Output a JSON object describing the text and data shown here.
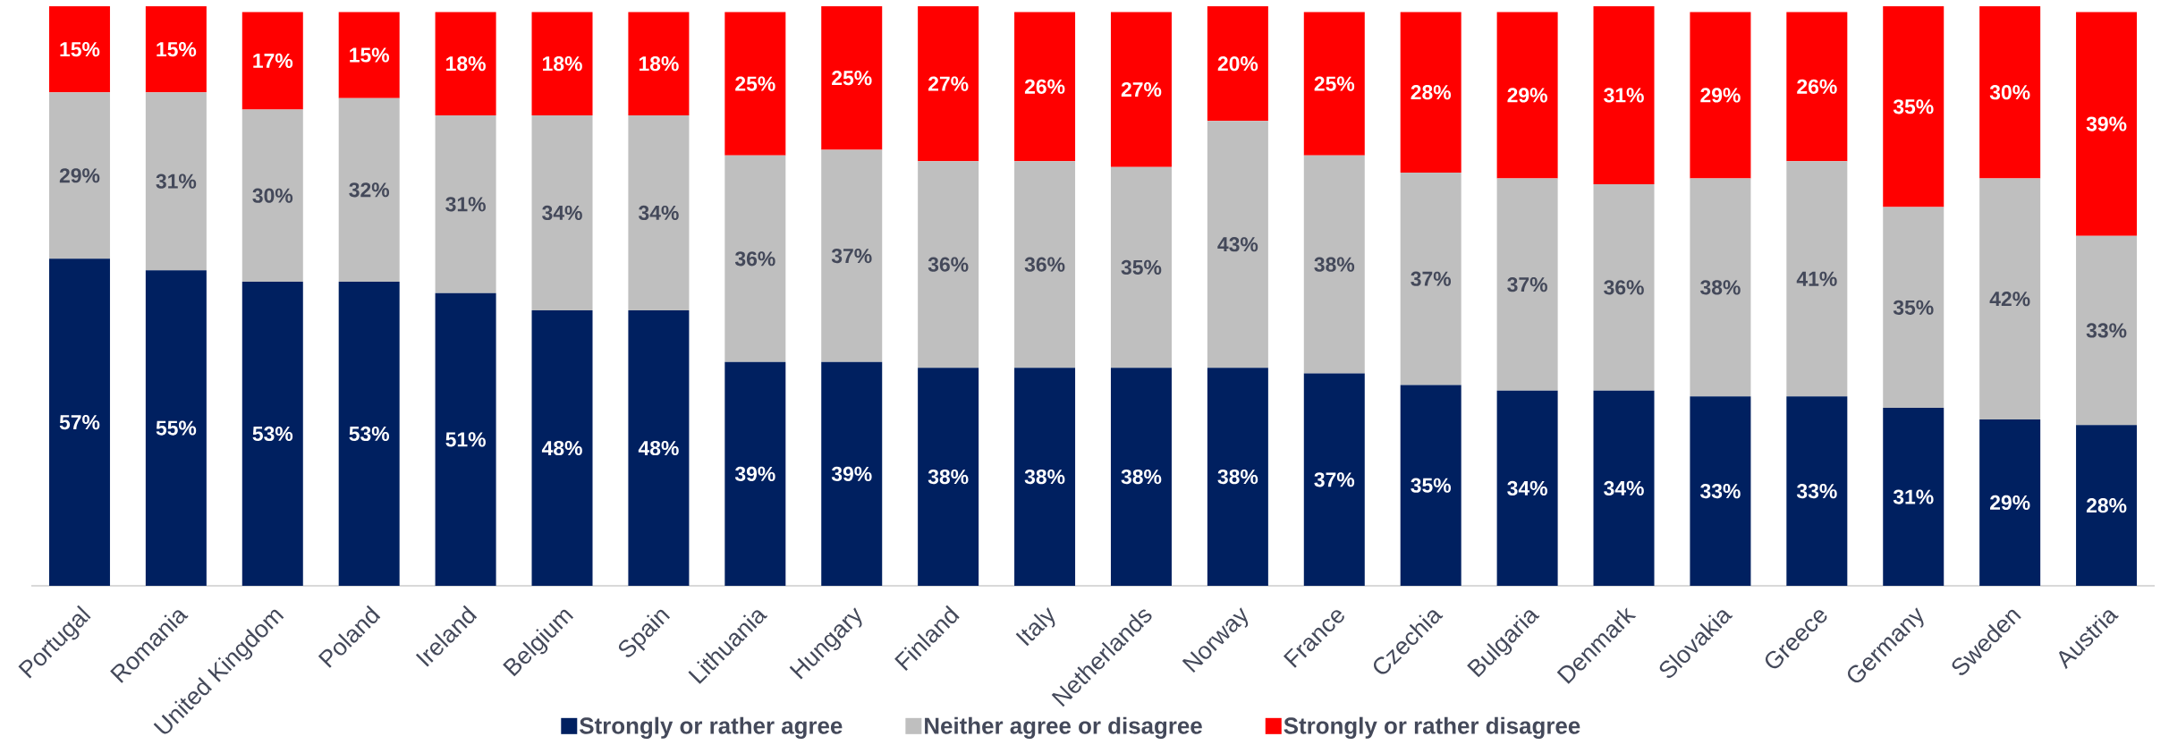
{
  "chart_data": {
    "type": "bar",
    "stacked": true,
    "legend": "bottom",
    "categories": [
      "Portugal",
      "Romania",
      "United Kingdom",
      "Poland",
      "Ireland",
      "Belgium",
      "Spain",
      "Lithuania",
      "Hungary",
      "Finland",
      "Italy",
      "Netherlands",
      "Norway",
      "France",
      "Czechia",
      "Bulgaria",
      "Denmark",
      "Slovakia",
      "Greece",
      "Germany",
      "Sweden",
      "Austria"
    ],
    "series": [
      {
        "name": "Strongly or rather agree",
        "color": "#002060",
        "values": [
          57,
          55,
          53,
          53,
          51,
          48,
          48,
          39,
          39,
          38,
          38,
          38,
          38,
          37,
          35,
          34,
          34,
          33,
          33,
          31,
          29,
          28
        ],
        "value_labels": [
          "57%",
          "55%",
          "53%",
          "53%",
          "51%",
          "48%",
          "48%",
          "39%",
          "39%",
          "38%",
          "38%",
          "38%",
          "38%",
          "37%",
          "35%",
          "34%",
          "34%",
          "33%",
          "33%",
          "31%",
          "29%",
          "28%"
        ]
      },
      {
        "name": "Neither agree or disagree",
        "color": "#bfbfbf",
        "values": [
          29,
          31,
          30,
          32,
          31,
          34,
          34,
          36,
          37,
          36,
          36,
          35,
          43,
          38,
          37,
          37,
          36,
          38,
          41,
          35,
          42,
          33
        ],
        "value_labels": [
          "29%",
          "31%",
          "30%",
          "32%",
          "31%",
          "34%",
          "34%",
          "36%",
          "37%",
          "36%",
          "36%",
          "35%",
          "43%",
          "38%",
          "37%",
          "37%",
          "36%",
          "38%",
          "41%",
          "35%",
          "42%",
          "33%"
        ]
      },
      {
        "name": "Strongly or rather disagree",
        "color": "#ff0000",
        "values": [
          15,
          15,
          17,
          15,
          18,
          18,
          18,
          25,
          25,
          27,
          26,
          27,
          20,
          25,
          28,
          29,
          31,
          29,
          26,
          35,
          30,
          39
        ],
        "value_labels": [
          "15%",
          "15%",
          "17%",
          "15%",
          "18%",
          "18%",
          "18%",
          "25%",
          "25%",
          "27%",
          "26%",
          "27%",
          "20%",
          "25%",
          "28%",
          "29%",
          "31%",
          "29%",
          "26%",
          "35%",
          "30%",
          "39%"
        ]
      }
    ]
  }
}
